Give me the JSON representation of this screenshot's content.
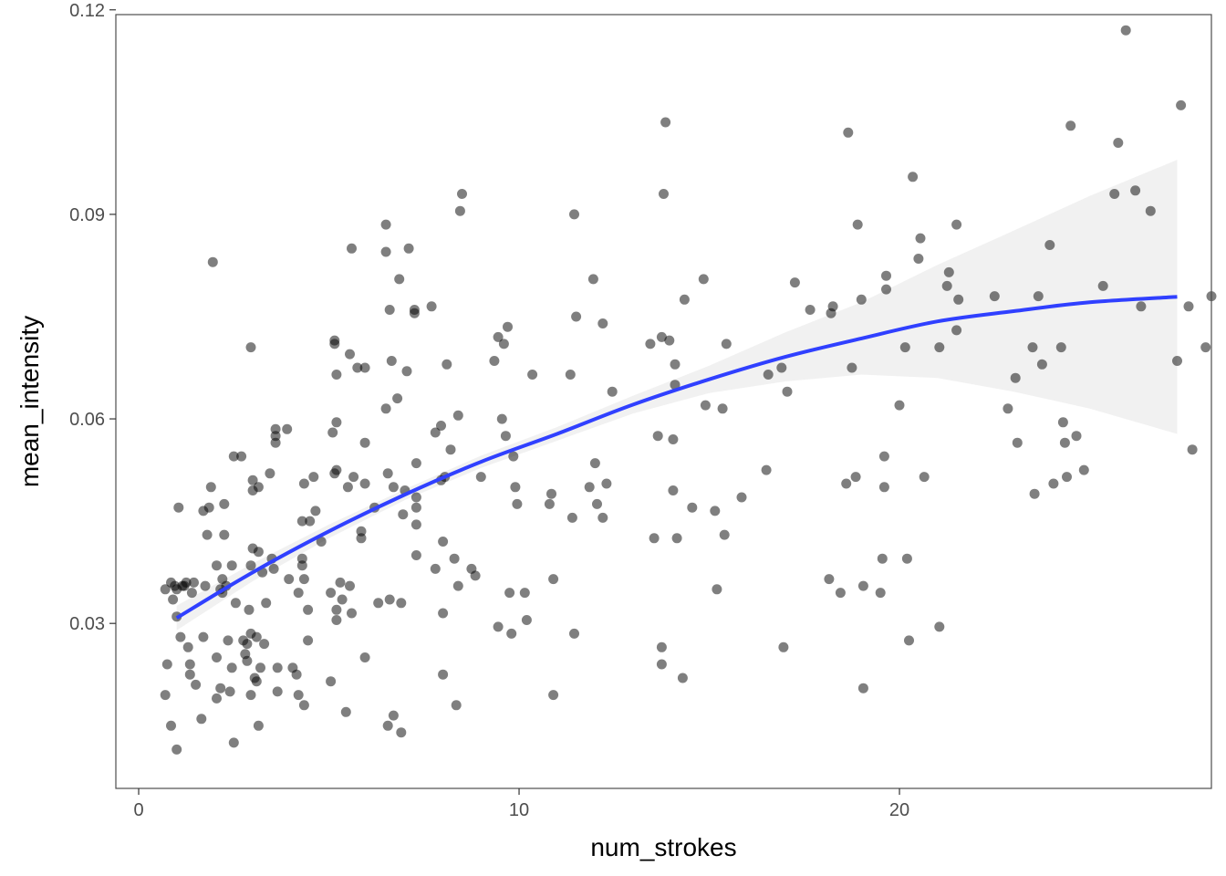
{
  "chart_data": {
    "type": "scatter",
    "xlabel": "num_strokes",
    "ylabel": "mean_intensity",
    "xlim": [
      -0.6,
      28.2
    ],
    "ylim": [
      0.0058,
      0.1193
    ],
    "x_ticks": [
      0,
      10,
      20
    ],
    "x_tick_labels": [
      "0",
      "10",
      "20"
    ],
    "y_ticks": [
      0.03,
      0.06,
      0.09,
      0.12
    ],
    "y_tick_labels": [
      "0.03",
      "0.06",
      "0.09",
      "0.12"
    ],
    "grid": false,
    "legend": "none",
    "colors": {
      "points": "#000000",
      "smooth_line": "#3040ff",
      "confidence_band": "#ebebeb",
      "panel_border": "#4d4d4d"
    },
    "points": [
      [
        0.7,
        0.035
      ],
      [
        0.7,
        0.0195
      ],
      [
        0.75,
        0.024
      ],
      [
        0.85,
        0.015
      ],
      [
        0.85,
        0.036
      ],
      [
        0.9,
        0.0335
      ],
      [
        0.95,
        0.0355
      ],
      [
        1.0,
        0.035
      ],
      [
        1.0,
        0.0115
      ],
      [
        1.0,
        0.031
      ],
      [
        1.05,
        0.047
      ],
      [
        1.1,
        0.028
      ],
      [
        1.15,
        0.0355
      ],
      [
        1.2,
        0.0355
      ],
      [
        1.25,
        0.036
      ],
      [
        1.3,
        0.0265
      ],
      [
        1.35,
        0.024
      ],
      [
        1.35,
        0.0225
      ],
      [
        1.4,
        0.0345
      ],
      [
        1.45,
        0.036
      ],
      [
        1.5,
        0.021
      ],
      [
        1.65,
        0.016
      ],
      [
        1.7,
        0.0465
      ],
      [
        1.7,
        0.028
      ],
      [
        1.75,
        0.0355
      ],
      [
        1.8,
        0.043
      ],
      [
        1.85,
        0.047
      ],
      [
        1.9,
        0.05
      ],
      [
        1.95,
        0.083
      ],
      [
        2.05,
        0.019
      ],
      [
        2.05,
        0.0385
      ],
      [
        2.05,
        0.025
      ],
      [
        2.15,
        0.0205
      ],
      [
        2.15,
        0.035
      ],
      [
        2.2,
        0.0345
      ],
      [
        2.2,
        0.0365
      ],
      [
        2.25,
        0.043
      ],
      [
        2.25,
        0.0475
      ],
      [
        2.3,
        0.0355
      ],
      [
        2.35,
        0.0275
      ],
      [
        2.4,
        0.02
      ],
      [
        2.45,
        0.0235
      ],
      [
        2.45,
        0.0385
      ],
      [
        2.5,
        0.0545
      ],
      [
        2.5,
        0.0125
      ],
      [
        2.55,
        0.033
      ],
      [
        2.7,
        0.0545
      ],
      [
        2.75,
        0.0275
      ],
      [
        2.8,
        0.0255
      ],
      [
        2.85,
        0.0245
      ],
      [
        2.85,
        0.027
      ],
      [
        2.9,
        0.032
      ],
      [
        2.95,
        0.0285
      ],
      [
        2.95,
        0.0705
      ],
      [
        2.95,
        0.0385
      ],
      [
        2.95,
        0.0195
      ],
      [
        3.0,
        0.041
      ],
      [
        3.0,
        0.051
      ],
      [
        3.0,
        0.0495
      ],
      [
        3.05,
        0.022
      ],
      [
        3.1,
        0.028
      ],
      [
        3.1,
        0.0215
      ],
      [
        3.15,
        0.0405
      ],
      [
        3.15,
        0.05
      ],
      [
        3.15,
        0.015
      ],
      [
        3.2,
        0.0235
      ],
      [
        3.25,
        0.0375
      ],
      [
        3.3,
        0.027
      ],
      [
        3.35,
        0.033
      ],
      [
        3.45,
        0.052
      ],
      [
        3.5,
        0.0395
      ],
      [
        3.55,
        0.038
      ],
      [
        3.6,
        0.0585
      ],
      [
        3.6,
        0.0565
      ],
      [
        3.6,
        0.0575
      ],
      [
        3.65,
        0.02
      ],
      [
        3.65,
        0.0235
      ],
      [
        3.9,
        0.0585
      ],
      [
        3.95,
        0.0365
      ],
      [
        4.05,
        0.0235
      ],
      [
        4.15,
        0.0225
      ],
      [
        4.2,
        0.0345
      ],
      [
        4.2,
        0.0195
      ],
      [
        4.3,
        0.045
      ],
      [
        4.3,
        0.0395
      ],
      [
        4.3,
        0.0385
      ],
      [
        4.35,
        0.0505
      ],
      [
        4.35,
        0.0365
      ],
      [
        4.35,
        0.018
      ],
      [
        4.45,
        0.0275
      ],
      [
        4.45,
        0.032
      ],
      [
        4.5,
        0.045
      ],
      [
        4.6,
        0.0515
      ],
      [
        4.65,
        0.0465
      ],
      [
        4.8,
        0.042
      ],
      [
        5.05,
        0.0215
      ],
      [
        5.05,
        0.0345
      ],
      [
        5.1,
        0.058
      ],
      [
        5.15,
        0.0715
      ],
      [
        5.15,
        0.071
      ],
      [
        5.15,
        0.052
      ],
      [
        5.2,
        0.0665
      ],
      [
        5.2,
        0.0525
      ],
      [
        5.2,
        0.0595
      ],
      [
        5.2,
        0.0305
      ],
      [
        5.2,
        0.032
      ],
      [
        5.3,
        0.036
      ],
      [
        5.35,
        0.0335
      ],
      [
        5.45,
        0.017
      ],
      [
        5.5,
        0.05
      ],
      [
        5.55,
        0.0695
      ],
      [
        5.55,
        0.0355
      ],
      [
        5.6,
        0.085
      ],
      [
        5.6,
        0.0315
      ],
      [
        5.65,
        0.0515
      ],
      [
        5.75,
        0.0675
      ],
      [
        5.85,
        0.0435
      ],
      [
        5.85,
        0.0425
      ],
      [
        5.95,
        0.0675
      ],
      [
        5.95,
        0.0565
      ],
      [
        5.95,
        0.0505
      ],
      [
        5.95,
        0.025
      ],
      [
        6.2,
        0.047
      ],
      [
        6.3,
        0.033
      ],
      [
        6.5,
        0.0885
      ],
      [
        6.5,
        0.0845
      ],
      [
        6.5,
        0.0615
      ],
      [
        6.55,
        0.052
      ],
      [
        6.55,
        0.015
      ],
      [
        6.6,
        0.076
      ],
      [
        6.6,
        0.0335
      ],
      [
        6.65,
        0.0685
      ],
      [
        6.7,
        0.05
      ],
      [
        6.7,
        0.0165
      ],
      [
        6.8,
        0.063
      ],
      [
        6.85,
        0.0805
      ],
      [
        6.9,
        0.033
      ],
      [
        6.9,
        0.014
      ],
      [
        6.95,
        0.046
      ],
      [
        7.0,
        0.0495
      ],
      [
        7.05,
        0.067
      ],
      [
        7.1,
        0.085
      ],
      [
        7.25,
        0.076
      ],
      [
        7.25,
        0.0755
      ],
      [
        7.3,
        0.0535
      ],
      [
        7.3,
        0.0485
      ],
      [
        7.3,
        0.047
      ],
      [
        7.3,
        0.0445
      ],
      [
        7.3,
        0.04
      ],
      [
        7.7,
        0.0765
      ],
      [
        7.8,
        0.058
      ],
      [
        7.8,
        0.038
      ],
      [
        7.95,
        0.059
      ],
      [
        7.95,
        0.051
      ],
      [
        8.0,
        0.042
      ],
      [
        8.0,
        0.0315
      ],
      [
        8.0,
        0.0225
      ],
      [
        8.05,
        0.0515
      ],
      [
        8.1,
        0.068
      ],
      [
        8.2,
        0.0555
      ],
      [
        8.3,
        0.0395
      ],
      [
        8.35,
        0.018
      ],
      [
        8.4,
        0.0605
      ],
      [
        8.4,
        0.0355
      ],
      [
        8.45,
        0.0905
      ],
      [
        8.5,
        0.093
      ],
      [
        8.75,
        0.038
      ],
      [
        8.85,
        0.037
      ],
      [
        9.0,
        0.0515
      ],
      [
        9.35,
        0.0685
      ],
      [
        9.45,
        0.072
      ],
      [
        9.45,
        0.0295
      ],
      [
        9.55,
        0.06
      ],
      [
        9.6,
        0.071
      ],
      [
        9.65,
        0.0575
      ],
      [
        9.7,
        0.0735
      ],
      [
        9.75,
        0.0345
      ],
      [
        9.8,
        0.0285
      ],
      [
        9.85,
        0.0545
      ],
      [
        9.9,
        0.05
      ],
      [
        9.95,
        0.0475
      ],
      [
        10.15,
        0.0345
      ],
      [
        10.2,
        0.0305
      ],
      [
        10.35,
        0.0665
      ],
      [
        10.8,
        0.0475
      ],
      [
        10.85,
        0.049
      ],
      [
        10.9,
        0.0195
      ],
      [
        10.9,
        0.0365
      ],
      [
        11.35,
        0.0665
      ],
      [
        11.4,
        0.0455
      ],
      [
        11.45,
        0.0285
      ],
      [
        11.45,
        0.09
      ],
      [
        11.5,
        0.075
      ],
      [
        11.85,
        0.05
      ],
      [
        11.95,
        0.0805
      ],
      [
        12.0,
        0.0535
      ],
      [
        12.05,
        0.0475
      ],
      [
        12.2,
        0.0455
      ],
      [
        12.2,
        0.074
      ],
      [
        12.3,
        0.0505
      ],
      [
        12.45,
        0.064
      ],
      [
        13.45,
        0.071
      ],
      [
        13.55,
        0.0425
      ],
      [
        13.65,
        0.0575
      ],
      [
        13.75,
        0.072
      ],
      [
        13.75,
        0.0265
      ],
      [
        13.75,
        0.024
      ],
      [
        13.8,
        0.093
      ],
      [
        13.85,
        0.1035
      ],
      [
        13.95,
        0.0715
      ],
      [
        14.05,
        0.057
      ],
      [
        14.05,
        0.0495
      ],
      [
        14.1,
        0.068
      ],
      [
        14.1,
        0.065
      ],
      [
        14.15,
        0.0425
      ],
      [
        14.3,
        0.022
      ],
      [
        14.35,
        0.0775
      ],
      [
        14.55,
        0.047
      ],
      [
        14.85,
        0.0805
      ],
      [
        14.9,
        0.062
      ],
      [
        15.15,
        0.0465
      ],
      [
        15.2,
        0.035
      ],
      [
        15.35,
        0.0615
      ],
      [
        15.4,
        0.043
      ],
      [
        15.45,
        0.071
      ],
      [
        15.85,
        0.0485
      ],
      [
        16.5,
        0.0525
      ],
      [
        16.55,
        0.0665
      ],
      [
        16.9,
        0.0675
      ],
      [
        16.95,
        0.0265
      ],
      [
        17.05,
        0.064
      ],
      [
        17.25,
        0.08
      ],
      [
        17.65,
        0.076
      ],
      [
        18.15,
        0.0365
      ],
      [
        18.2,
        0.0755
      ],
      [
        18.25,
        0.0765
      ],
      [
        18.45,
        0.0345
      ],
      [
        18.6,
        0.0505
      ],
      [
        18.65,
        0.102
      ],
      [
        18.75,
        0.0675
      ],
      [
        18.85,
        0.0515
      ],
      [
        18.9,
        0.0885
      ],
      [
        19.0,
        0.0775
      ],
      [
        19.05,
        0.0205
      ],
      [
        19.05,
        0.0355
      ],
      [
        19.5,
        0.0345
      ],
      [
        19.55,
        0.0395
      ],
      [
        19.6,
        0.05
      ],
      [
        19.6,
        0.0545
      ],
      [
        19.65,
        0.079
      ],
      [
        19.65,
        0.081
      ],
      [
        20.0,
        0.062
      ],
      [
        20.15,
        0.0705
      ],
      [
        20.2,
        0.0395
      ],
      [
        20.25,
        0.0275
      ],
      [
        20.35,
        0.0955
      ],
      [
        20.5,
        0.0835
      ],
      [
        20.55,
        0.0865
      ],
      [
        20.65,
        0.0515
      ],
      [
        21.05,
        0.0705
      ],
      [
        21.05,
        0.0295
      ],
      [
        21.25,
        0.0795
      ],
      [
        21.3,
        0.0815
      ],
      [
        21.5,
        0.0885
      ],
      [
        21.5,
        0.073
      ],
      [
        21.55,
        0.0775
      ],
      [
        22.5,
        0.078
      ],
      [
        22.85,
        0.0615
      ],
      [
        23.05,
        0.066
      ],
      [
        23.1,
        0.0565
      ],
      [
        23.5,
        0.0705
      ],
      [
        23.55,
        0.049
      ],
      [
        23.65,
        0.078
      ],
      [
        23.75,
        0.068
      ],
      [
        23.95,
        0.0855
      ],
      [
        24.05,
        0.0505
      ],
      [
        24.25,
        0.0705
      ],
      [
        24.3,
        0.0595
      ],
      [
        24.35,
        0.0565
      ],
      [
        24.4,
        0.0515
      ],
      [
        24.5,
        0.103
      ],
      [
        24.65,
        0.0575
      ],
      [
        24.85,
        0.0525
      ],
      [
        25.35,
        0.0795
      ],
      [
        25.65,
        0.093
      ],
      [
        25.75,
        0.1005
      ],
      [
        25.95,
        0.117
      ],
      [
        26.2,
        0.0935
      ],
      [
        26.35,
        0.0765
      ],
      [
        26.6,
        0.0905
      ],
      [
        27.3,
        0.0685
      ],
      [
        27.4,
        0.106
      ],
      [
        27.6,
        0.0765
      ],
      [
        27.7,
        0.0555
      ],
      [
        28.05,
        0.0705
      ],
      [
        28.2,
        0.078
      ]
    ],
    "smooth_line": {
      "x": [
        1,
        3,
        5,
        7,
        9,
        11,
        13,
        15,
        17,
        19,
        21,
        23,
        25,
        27.3
      ],
      "y": [
        0.0308,
        0.0375,
        0.0435,
        0.0489,
        0.0537,
        0.0578,
        0.0621,
        0.0658,
        0.0691,
        0.0718,
        0.0743,
        0.0758,
        0.0771,
        0.0779
      ],
      "lower": [
        0.029,
        0.0362,
        0.0425,
        0.0481,
        0.0528,
        0.0568,
        0.0608,
        0.0638,
        0.0655,
        0.0665,
        0.066,
        0.064,
        0.0615,
        0.0578
      ],
      "upper": [
        0.0326,
        0.0388,
        0.0445,
        0.0497,
        0.0546,
        0.0588,
        0.0634,
        0.0678,
        0.0727,
        0.0771,
        0.0826,
        0.0876,
        0.0927,
        0.098
      ]
    }
  }
}
